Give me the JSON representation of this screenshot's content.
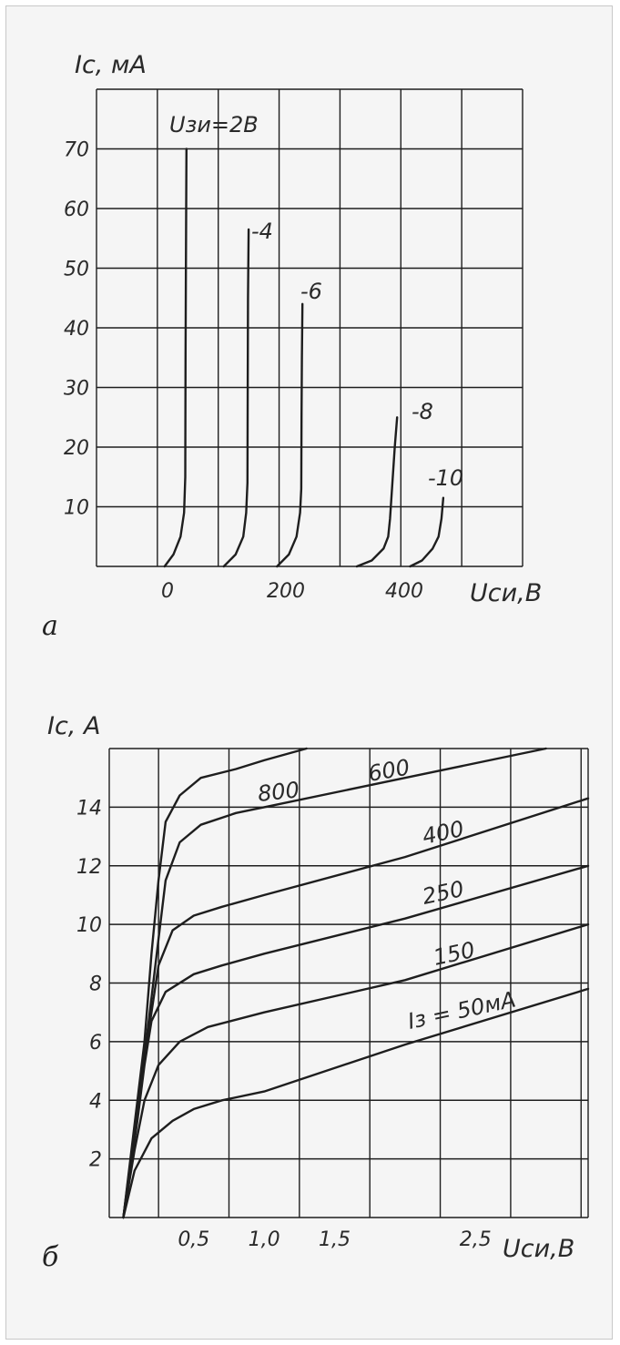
{
  "colors": {
    "background": "#f5f5f5",
    "grid": "#1e1e1e",
    "curve": "#1e1e1e",
    "text": "#2a2a2a"
  },
  "chart_data": [
    {
      "type": "line",
      "sublabel": "а",
      "ylabel": "Iс, мА",
      "xlabel": "Uси,В",
      "xlim": [
        -120,
        600
      ],
      "ylim": [
        0,
        80
      ],
      "x_ticks": [
        "0",
        "200",
        "400"
      ],
      "x_tick_values": [
        0,
        200,
        400
      ],
      "y_ticks": [
        "10",
        "20",
        "30",
        "40",
        "50",
        "60",
        "70"
      ],
      "y_tick_values": [
        10,
        20,
        30,
        40,
        50,
        60,
        70
      ],
      "series": [
        {
          "name": "Uзи=2В",
          "label": "Uзи=2В",
          "x": [
            -5,
            10,
            22,
            28,
            30,
            30.5,
            31,
            31.5,
            32
          ],
          "y": [
            0,
            2,
            5,
            9,
            15,
            35,
            50,
            60,
            70
          ]
        },
        {
          "name": "-4",
          "label": "-4",
          "x": [
            95,
            115,
            128,
            133,
            135,
            135.5,
            136,
            137
          ],
          "y": [
            0,
            2,
            5,
            9,
            14,
            30,
            45,
            56.5
          ]
        },
        {
          "name": "-6",
          "label": "-6",
          "x": [
            185,
            205,
            218,
            224,
            226,
            226.5,
            227,
            228
          ],
          "y": [
            0,
            2,
            5,
            9,
            13,
            25,
            35,
            44
          ]
        },
        {
          "name": "-8",
          "label": "-8",
          "x": [
            320,
            345,
            365,
            373,
            376,
            380,
            384,
            388
          ],
          "y": [
            0,
            1,
            3,
            5,
            8,
            14,
            20,
            25
          ]
        },
        {
          "name": "-10",
          "label": "-10",
          "x": [
            410,
            430,
            448,
            458,
            463,
            466
          ],
          "y": [
            0,
            1,
            3,
            5,
            8,
            11.5
          ]
        }
      ]
    },
    {
      "type": "line",
      "sublabel": "б",
      "ylabel": "Iс, А",
      "xlabel": "Uси,В",
      "xlim": [
        -0.1,
        3.3
      ],
      "ylim": [
        0,
        16
      ],
      "x_ticks": [
        "0,5",
        "1,0",
        "1,5",
        "2,5"
      ],
      "x_tick_values": [
        0.5,
        1.0,
        1.5,
        2.5
      ],
      "y_ticks": [
        "2",
        "4",
        "6",
        "8",
        "10",
        "12",
        "14"
      ],
      "y_tick_values": [
        2,
        4,
        6,
        8,
        10,
        12,
        14
      ],
      "series": [
        {
          "name": "Iз = 50мА",
          "label": "Iз = 50мА",
          "x": [
            0,
            0.08,
            0.2,
            0.35,
            0.5,
            0.7,
            1.0,
            2.0,
            3.3
          ],
          "y": [
            0,
            1.6,
            2.7,
            3.3,
            3.7,
            4.0,
            4.3,
            5.9,
            7.8
          ]
        },
        {
          "name": "150",
          "label": "150",
          "x": [
            0,
            0.08,
            0.15,
            0.25,
            0.4,
            0.6,
            1.0,
            2.0,
            3.3
          ],
          "y": [
            0,
            2.3,
            4.0,
            5.2,
            6.0,
            6.5,
            7.0,
            8.1,
            10.0
          ]
        },
        {
          "name": "250",
          "label": "250",
          "x": [
            0,
            0.1,
            0.15,
            0.2,
            0.3,
            0.5,
            0.7,
            1.0,
            2.0,
            3.3
          ],
          "y": [
            0,
            3.3,
            5.2,
            6.7,
            7.7,
            8.3,
            8.6,
            9.0,
            10.2,
            12.0
          ]
        },
        {
          "name": "400",
          "label": "400",
          "x": [
            0,
            0.12,
            0.2,
            0.25,
            0.35,
            0.5,
            0.7,
            1.0,
            2.0,
            3.3
          ],
          "y": [
            0,
            4.5,
            7.0,
            8.6,
            9.8,
            10.3,
            10.6,
            11.0,
            12.3,
            14.3
          ]
        },
        {
          "name": "600",
          "label": "600",
          "x": [
            0,
            0.15,
            0.25,
            0.3,
            0.4,
            0.55,
            0.8,
            1.0,
            2.0,
            3.0
          ],
          "y": [
            0,
            5.5,
            9.5,
            11.5,
            12.8,
            13.4,
            13.8,
            14.0,
            15.0,
            16.0
          ]
        },
        {
          "name": "800",
          "label": "800",
          "x": [
            0,
            0.15,
            0.2,
            0.25,
            0.3,
            0.4,
            0.55,
            0.8,
            1.0,
            1.3
          ],
          "y": [
            0,
            6.0,
            9.0,
            11.5,
            13.5,
            14.4,
            15.0,
            15.3,
            15.6,
            16.0
          ]
        }
      ]
    }
  ]
}
